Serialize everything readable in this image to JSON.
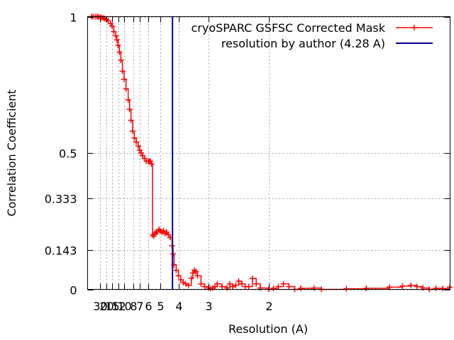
{
  "chart_data": {
    "type": "line",
    "xlabel": "Resolution (A)",
    "ylabel": "Correlation Coefficient",
    "ylim": [
      0,
      1
    ],
    "y_ticks": [
      {
        "label": "1",
        "value": 1.0
      },
      {
        "label": "0.5",
        "value": 0.5
      },
      {
        "label": "0.333",
        "value": 0.333
      },
      {
        "label": "0.143",
        "value": 0.143
      },
      {
        "label": "0",
        "value": 0.0
      }
    ],
    "x_ticks": [
      {
        "label": "30",
        "value": 30
      },
      {
        "label": "20",
        "value": 20
      },
      {
        "label": "15",
        "value": 15
      },
      {
        "label": "12",
        "value": 12
      },
      {
        "label": "10",
        "value": 10
      },
      {
        "label": "8",
        "value": 8
      },
      {
        "label": "7",
        "value": 7
      },
      {
        "label": "6",
        "value": 6
      },
      {
        "label": "5",
        "value": 5
      },
      {
        "label": "4",
        "value": 4
      },
      {
        "label": "3",
        "value": 3
      },
      {
        "label": "2",
        "value": 2
      }
    ],
    "grid": true,
    "legend_position": "top-right",
    "series": [
      {
        "name": "cryoSPARC GSFSC Corrected Mask",
        "color": "#ff0000",
        "marker": "plus",
        "x": [
          100,
          70,
          50,
          40,
          35,
          30,
          27,
          24,
          22,
          20,
          18,
          16,
          15,
          14,
          13,
          12.5,
          12,
          11.5,
          11,
          10.5,
          10,
          9.5,
          9,
          8.7,
          8.4,
          8.1,
          7.8,
          7.5,
          7.2,
          7.0,
          6.8,
          6.6,
          6.4,
          6.2,
          6.0,
          5.9,
          5.8,
          5.7,
          5.6,
          5.5,
          5.4,
          5.3,
          5.2,
          5.1,
          5.0,
          4.9,
          4.8,
          4.7,
          4.6,
          4.5,
          4.4,
          4.3,
          4.25,
          4.2,
          4.1,
          4.0,
          3.9,
          3.8,
          3.7,
          3.6,
          3.5,
          3.45,
          3.4,
          3.35,
          3.3,
          3.2,
          3.1,
          3.0,
          2.95,
          2.9,
          2.85,
          2.8,
          2.7,
          2.6,
          2.55,
          2.5,
          2.45,
          2.4,
          2.35,
          2.3,
          2.25,
          2.2,
          2.15,
          2.1,
          2.0,
          1.95,
          1.9,
          1.85,
          1.8,
          1.75,
          1.7,
          1.6,
          1.55,
          1.4,
          1.3,
          1.2,
          1.15,
          1.12,
          1.1,
          1.08,
          1.06,
          1.04,
          1.02,
          1.0
        ],
        "y": [
          1.0,
          1.0,
          1.0,
          1.0,
          0.999,
          0.998,
          0.997,
          0.995,
          0.993,
          0.99,
          0.985,
          0.975,
          0.965,
          0.945,
          0.93,
          0.915,
          0.895,
          0.87,
          0.84,
          0.8,
          0.77,
          0.735,
          0.695,
          0.66,
          0.62,
          0.58,
          0.555,
          0.54,
          0.525,
          0.51,
          0.5,
          0.49,
          0.48,
          0.47,
          0.47,
          0.47,
          0.47,
          0.46,
          0.2,
          0.195,
          0.205,
          0.21,
          0.21,
          0.22,
          0.215,
          0.21,
          0.215,
          0.205,
          0.21,
          0.2,
          0.19,
          0.16,
          0.13,
          0.09,
          0.07,
          0.05,
          0.035,
          0.025,
          0.02,
          0.015,
          0.04,
          0.06,
          0.07,
          0.065,
          0.05,
          0.02,
          0.01,
          0.005,
          0.003,
          0.005,
          0.01,
          0.02,
          0.01,
          0.005,
          0.02,
          0.01,
          0.015,
          0.03,
          0.02,
          0.01,
          0.01,
          0.04,
          0.02,
          0.005,
          0.0,
          0.004,
          0.01,
          0.02,
          0.01,
          0.0,
          0.004,
          0.005,
          0.0,
          0.002,
          0.004,
          0.008,
          0.012,
          0.015,
          0.01,
          0.005,
          0.0,
          0.004,
          0.003,
          0.008
        ]
      },
      {
        "name": "resolution by author (4.28 A)",
        "color": "#0000a0",
        "type": "vline",
        "x": 4.28
      }
    ]
  }
}
